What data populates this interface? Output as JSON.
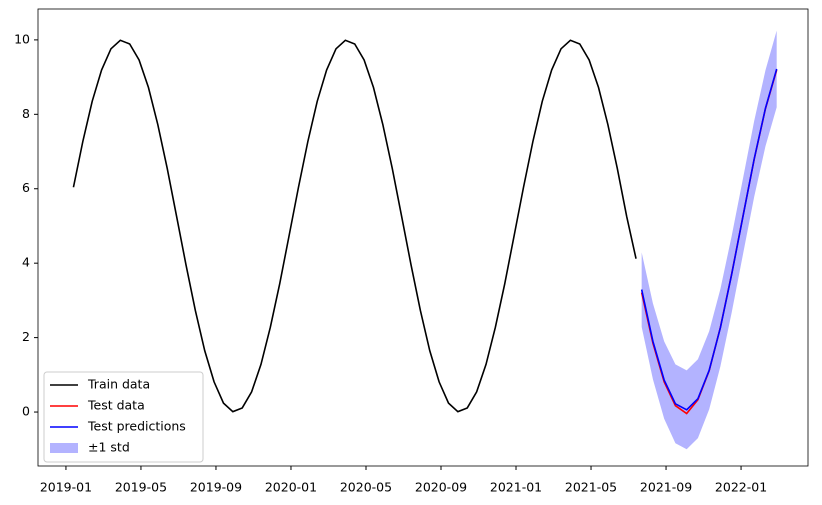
{
  "chart_data": {
    "type": "line",
    "xlim": [
      -1.49,
      39.57
    ],
    "ylim": [
      -1.45,
      10.83
    ],
    "xticks": [
      {
        "value": 0,
        "label": "2019-01"
      },
      {
        "value": 4,
        "label": "2019-05"
      },
      {
        "value": 8,
        "label": "2019-09"
      },
      {
        "value": 12,
        "label": "2020-01"
      },
      {
        "value": 16,
        "label": "2020-05"
      },
      {
        "value": 20,
        "label": "2020-09"
      },
      {
        "value": 24,
        "label": "2021-01"
      },
      {
        "value": 28,
        "label": "2021-05"
      },
      {
        "value": 32,
        "label": "2021-09"
      },
      {
        "value": 36,
        "label": "2022-01"
      }
    ],
    "yticks": [
      0,
      2,
      4,
      6,
      8,
      10
    ],
    "legend": "lower left",
    "series": [
      {
        "name": "Train data",
        "color": "#000000",
        "x": [
          0.4,
          0.9,
          1.4,
          1.9,
          2.4,
          2.9,
          3.4,
          3.9,
          4.4,
          4.9,
          5.4,
          5.9,
          6.4,
          6.9,
          7.4,
          7.9,
          8.4,
          8.9,
          9.4,
          9.9,
          10.4,
          10.9,
          11.4,
          11.9,
          12.4,
          12.9,
          13.4,
          13.9,
          14.4,
          14.9,
          15.4,
          15.9,
          16.4,
          16.9,
          17.4,
          17.9,
          18.4,
          18.9,
          19.4,
          19.9,
          20.4,
          20.9,
          21.4,
          21.9,
          22.4,
          22.9,
          23.4,
          23.9,
          24.4,
          24.9,
          25.4,
          25.9,
          26.4,
          26.9,
          27.4,
          27.9,
          28.4,
          28.9,
          29.4,
          29.9,
          30.4
        ],
        "values": [
          6.04,
          7.27,
          8.35,
          9.19,
          9.76,
          9.99,
          9.89,
          9.46,
          8.72,
          7.72,
          6.55,
          5.26,
          3.96,
          2.73,
          1.65,
          0.81,
          0.24,
          0.01,
          0.11,
          0.54,
          1.28,
          2.28,
          3.45,
          4.74,
          6.04,
          7.27,
          8.35,
          9.19,
          9.76,
          9.99,
          9.89,
          9.46,
          8.72,
          7.72,
          6.55,
          5.26,
          3.96,
          2.73,
          1.65,
          0.81,
          0.24,
          0.01,
          0.11,
          0.54,
          1.28,
          2.28,
          3.45,
          4.74,
          6.04,
          7.27,
          8.35,
          9.19,
          9.76,
          9.99,
          9.89,
          9.46,
          8.72,
          7.72,
          6.55,
          5.26,
          4.12
        ]
      },
      {
        "name": "Test data",
        "color": "#ff0000",
        "x": [
          30.7,
          31.3,
          31.9,
          32.5,
          33.1,
          33.7,
          34.3,
          34.9,
          35.5,
          36.1,
          36.7,
          37.3,
          37.9
        ],
        "values": [
          3.21,
          1.85,
          0.81,
          0.17,
          -0.04,
          0.33,
          1.11,
          2.28,
          3.71,
          5.26,
          6.79,
          8.15,
          9.19
        ]
      },
      {
        "name": "Test predictions",
        "color": "#0000ff",
        "x": [
          30.7,
          31.3,
          31.9,
          32.5,
          33.1,
          33.7,
          34.3,
          34.9,
          35.5,
          36.1,
          36.7,
          37.3,
          37.9
        ],
        "values": [
          3.29,
          1.9,
          0.86,
          0.22,
          0.06,
          0.36,
          1.12,
          2.27,
          3.7,
          5.25,
          6.8,
          8.16,
          9.22
        ]
      },
      {
        "name": "±1 std",
        "color": "#b3b3ff",
        "kind": "band",
        "x": [
          30.7,
          31.3,
          31.9,
          32.5,
          33.1,
          33.7,
          34.3,
          34.9,
          35.5,
          36.1,
          36.7,
          37.3,
          37.9
        ],
        "lower": [
          2.29,
          0.88,
          -0.18,
          -0.84,
          -1.0,
          -0.7,
          0.07,
          1.23,
          2.67,
          4.23,
          5.78,
          7.14,
          8.19
        ],
        "upper": [
          4.29,
          2.92,
          1.9,
          1.28,
          1.12,
          1.42,
          2.17,
          3.31,
          4.73,
          6.27,
          7.82,
          9.18,
          10.25
        ]
      }
    ]
  }
}
